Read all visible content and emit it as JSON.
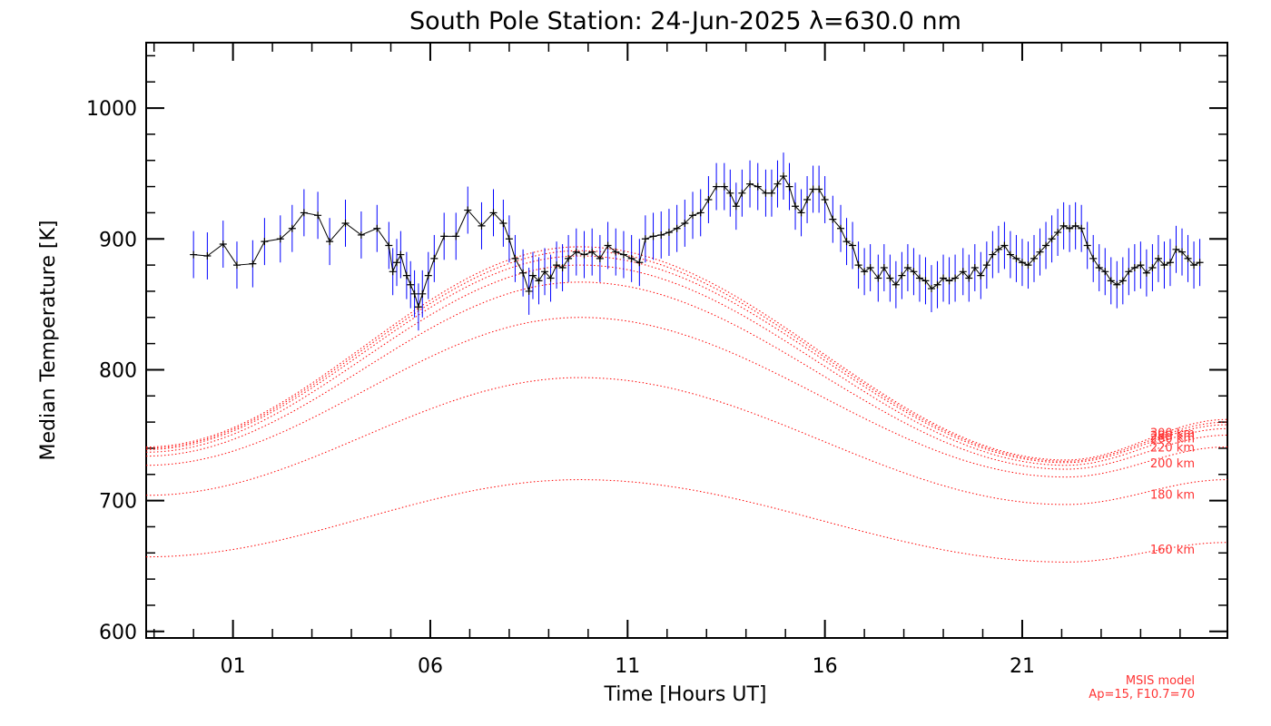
{
  "chart_data": {
    "type": "line",
    "title": "South Pole Station: 24-Jun-2025 λ=630.0 nm",
    "xlabel": "Time [Hours UT]",
    "ylabel": "Median Temperature [K]",
    "xlim": [
      -1.2,
      26.2
    ],
    "ylim": [
      595,
      1050
    ],
    "x_ticks": [
      1,
      6,
      11,
      16,
      21
    ],
    "x_tick_labels": [
      "01",
      "06",
      "11",
      "16",
      "21"
    ],
    "y_ticks": [
      600,
      700,
      800,
      900,
      1000
    ],
    "y_tick_labels": [
      "600",
      "700",
      "800",
      "900",
      "1000"
    ],
    "grid": false,
    "model_note": [
      "MSIS model",
      "Ap=15, F10.7=70"
    ],
    "colors": {
      "axes": "#000000",
      "measurement": "#000000",
      "error_bars": "#0000ff",
      "model": "#ff0000",
      "text": "#000000"
    },
    "measurement": {
      "points": [
        [
          0.0,
          888
        ],
        [
          0.35,
          887
        ],
        [
          0.75,
          896
        ],
        [
          1.1,
          880
        ],
        [
          1.5,
          881
        ],
        [
          1.8,
          898
        ],
        [
          2.2,
          900
        ],
        [
          2.5,
          908
        ],
        [
          2.8,
          920
        ],
        [
          3.15,
          918
        ],
        [
          3.45,
          898
        ],
        [
          3.85,
          912
        ],
        [
          4.25,
          903
        ],
        [
          4.65,
          908
        ],
        [
          4.95,
          895
        ],
        [
          5.05,
          875
        ],
        [
          5.15,
          882
        ],
        [
          5.25,
          888
        ],
        [
          5.4,
          872
        ],
        [
          5.5,
          865
        ],
        [
          5.6,
          858
        ],
        [
          5.7,
          848
        ],
        [
          5.8,
          858
        ],
        [
          5.95,
          872
        ],
        [
          6.1,
          885
        ],
        [
          6.35,
          902
        ],
        [
          6.65,
          902
        ],
        [
          6.95,
          922
        ],
        [
          7.3,
          910
        ],
        [
          7.6,
          920
        ],
        [
          7.85,
          912
        ],
        [
          8.0,
          900
        ],
        [
          8.15,
          885
        ],
        [
          8.35,
          874
        ],
        [
          8.5,
          860
        ],
        [
          8.6,
          872
        ],
        [
          8.75,
          868
        ],
        [
          8.9,
          875
        ],
        [
          9.05,
          870
        ],
        [
          9.2,
          880
        ],
        [
          9.35,
          878
        ],
        [
          9.5,
          885
        ],
        [
          9.7,
          890
        ],
        [
          9.9,
          888
        ],
        [
          10.1,
          890
        ],
        [
          10.3,
          885
        ],
        [
          10.5,
          895
        ],
        [
          10.7,
          890
        ],
        [
          10.9,
          888
        ],
        [
          11.1,
          885
        ],
        [
          11.3,
          882
        ],
        [
          11.45,
          900
        ],
        [
          11.65,
          902
        ],
        [
          11.85,
          903
        ],
        [
          12.05,
          905
        ],
        [
          12.25,
          908
        ],
        [
          12.45,
          912
        ],
        [
          12.65,
          918
        ],
        [
          12.85,
          920
        ],
        [
          13.05,
          930
        ],
        [
          13.25,
          940
        ],
        [
          13.45,
          940
        ],
        [
          13.6,
          935
        ],
        [
          13.75,
          925
        ],
        [
          13.9,
          935
        ],
        [
          14.1,
          942
        ],
        [
          14.3,
          940
        ],
        [
          14.5,
          935
        ],
        [
          14.65,
          935
        ],
        [
          14.8,
          942
        ],
        [
          14.95,
          948
        ],
        [
          15.1,
          940
        ],
        [
          15.25,
          925
        ],
        [
          15.4,
          920
        ],
        [
          15.55,
          930
        ],
        [
          15.7,
          938
        ],
        [
          15.85,
          938
        ],
        [
          16.0,
          930
        ],
        [
          16.2,
          915
        ],
        [
          16.4,
          908
        ],
        [
          16.55,
          898
        ],
        [
          16.7,
          895
        ],
        [
          16.85,
          880
        ],
        [
          17.0,
          875
        ],
        [
          17.15,
          878
        ],
        [
          17.35,
          870
        ],
        [
          17.5,
          878
        ],
        [
          17.65,
          870
        ],
        [
          17.8,
          865
        ],
        [
          17.95,
          872
        ],
        [
          18.1,
          878
        ],
        [
          18.25,
          875
        ],
        [
          18.4,
          870
        ],
        [
          18.55,
          868
        ],
        [
          18.7,
          862
        ],
        [
          18.85,
          865
        ],
        [
          19.0,
          870
        ],
        [
          19.15,
          868
        ],
        [
          19.3,
          870
        ],
        [
          19.5,
          875
        ],
        [
          19.65,
          870
        ],
        [
          19.8,
          878
        ],
        [
          19.95,
          872
        ],
        [
          20.1,
          880
        ],
        [
          20.25,
          888
        ],
        [
          20.4,
          892
        ],
        [
          20.55,
          895
        ],
        [
          20.7,
          888
        ],
        [
          20.85,
          885
        ],
        [
          21.0,
          882
        ],
        [
          21.15,
          880
        ],
        [
          21.3,
          885
        ],
        [
          21.45,
          890
        ],
        [
          21.6,
          895
        ],
        [
          21.75,
          900
        ],
        [
          21.9,
          905
        ],
        [
          22.05,
          910
        ],
        [
          22.2,
          908
        ],
        [
          22.35,
          910
        ],
        [
          22.5,
          908
        ],
        [
          22.65,
          895
        ],
        [
          22.8,
          885
        ],
        [
          22.95,
          878
        ],
        [
          23.1,
          875
        ],
        [
          23.25,
          868
        ],
        [
          23.4,
          865
        ],
        [
          23.55,
          868
        ],
        [
          23.7,
          875
        ],
        [
          23.85,
          878
        ],
        [
          24.0,
          880
        ],
        [
          24.15,
          874
        ],
        [
          24.3,
          878
        ],
        [
          24.45,
          885
        ],
        [
          24.6,
          880
        ],
        [
          24.75,
          882
        ],
        [
          24.9,
          892
        ],
        [
          25.05,
          890
        ],
        [
          25.2,
          885
        ],
        [
          25.35,
          880
        ],
        [
          25.5,
          882
        ]
      ],
      "error": 18
    },
    "model_series": [
      {
        "name": "160 km",
        "values": [
          [
            -1.2,
            657
          ],
          [
            9.8,
            716
          ],
          [
            22.1,
            653
          ],
          [
            26.2,
            668
          ]
        ]
      },
      {
        "name": "180 km",
        "values": [
          [
            -1.2,
            704
          ],
          [
            9.8,
            794
          ],
          [
            22.1,
            697
          ],
          [
            26.2,
            716
          ]
        ]
      },
      {
        "name": "200 km",
        "values": [
          [
            -1.2,
            727
          ],
          [
            9.8,
            840
          ],
          [
            22.1,
            718
          ],
          [
            26.2,
            741
          ]
        ]
      },
      {
        "name": "220 km",
        "values": [
          [
            -1.2,
            734
          ],
          [
            9.8,
            867
          ],
          [
            22.1,
            724
          ],
          [
            26.2,
            750
          ]
        ]
      },
      {
        "name": "240 km",
        "values": [
          [
            -1.2,
            737
          ],
          [
            9.8,
            880
          ],
          [
            22.1,
            727
          ],
          [
            26.2,
            755
          ]
        ]
      },
      {
        "name": "260 km",
        "values": [
          [
            -1.2,
            739
          ],
          [
            9.8,
            887
          ],
          [
            22.1,
            729
          ],
          [
            26.2,
            758
          ]
        ]
      },
      {
        "name": "280 km",
        "values": [
          [
            -1.2,
            740
          ],
          [
            9.8,
            891
          ],
          [
            22.1,
            730
          ],
          [
            26.2,
            760
          ]
        ]
      },
      {
        "name": "300 km",
        "values": [
          [
            -1.2,
            741
          ],
          [
            9.8,
            894
          ],
          [
            22.1,
            731
          ],
          [
            26.2,
            762
          ]
        ]
      }
    ],
    "printed_model_labels": [
      {
        "series": "160 km",
        "y": 663
      },
      {
        "series": "180 km",
        "y": 705
      },
      {
        "series": "200 km",
        "y": 729
      },
      {
        "series": "220 km",
        "y": 741
      },
      {
        "series": "260 km",
        "y": 748
      },
      {
        "series": "280 km",
        "y": 750
      },
      {
        "series": "300 km",
        "y": 752
      }
    ]
  }
}
